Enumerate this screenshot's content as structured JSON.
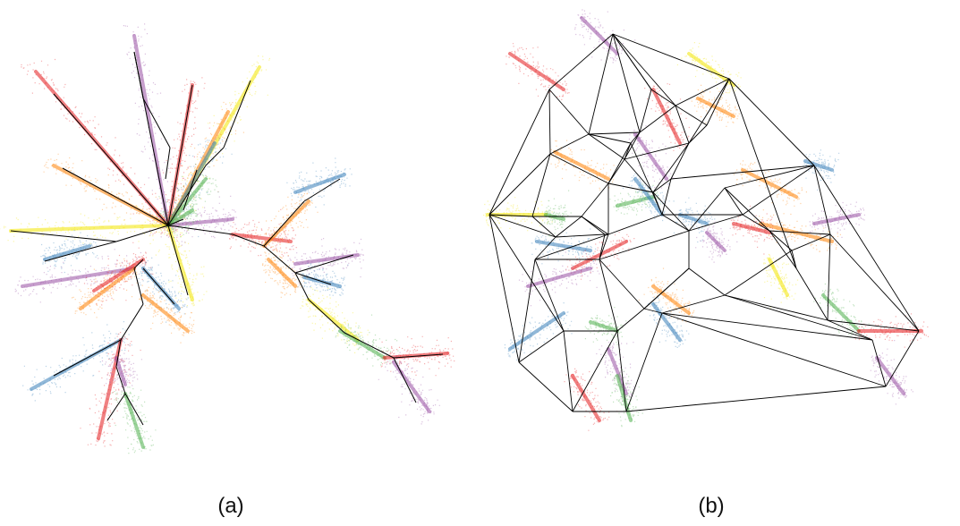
{
  "colors": {
    "red": "#e41a1c",
    "blue": "#377eb8",
    "green": "#4daf4a",
    "purple": "#984ea3",
    "orange": "#ff7f00",
    "yellow": "#f2e600",
    "edge": "#000000"
  },
  "panels": [
    {
      "caption": "(a)",
      "graph_type": "tree"
    },
    {
      "caption": "(b)",
      "graph_type": "triangulation"
    }
  ]
}
